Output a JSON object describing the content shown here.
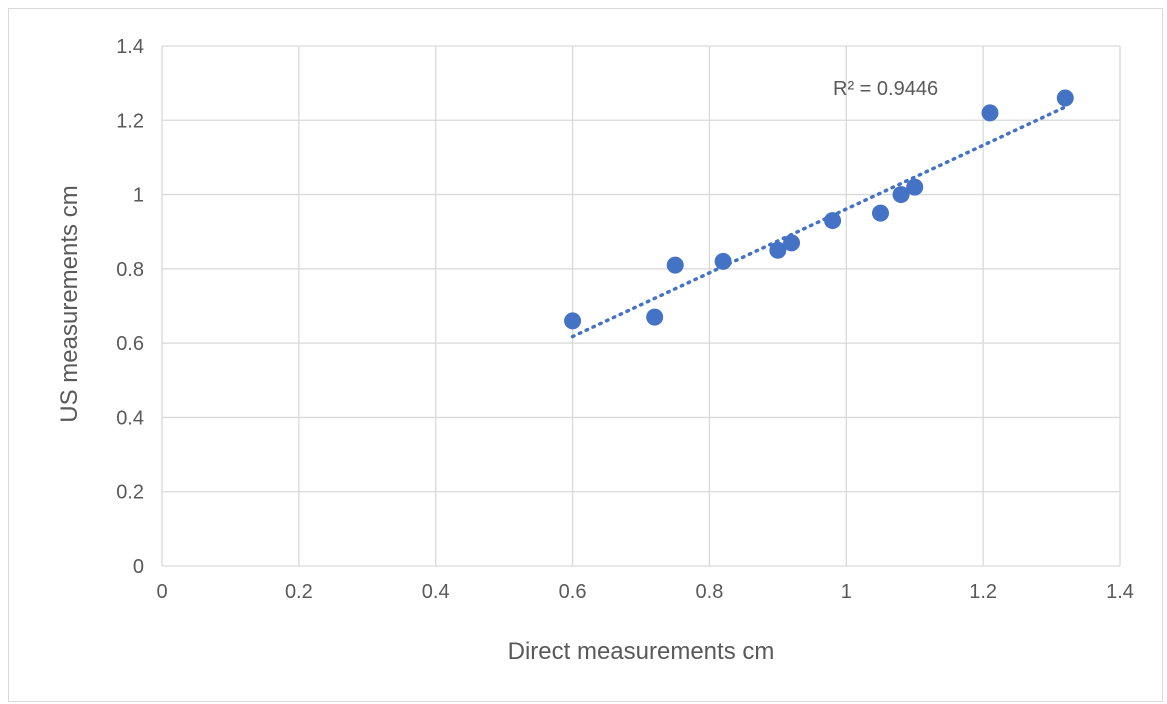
{
  "chart_data": {
    "type": "scatter",
    "title": "",
    "xlabel": "Direct measurements cm",
    "ylabel": "US measurements cm",
    "xlim": [
      0,
      1.4
    ],
    "ylim": [
      0,
      1.4
    ],
    "x_ticks": [
      "0",
      "0.2",
      "0.4",
      "0.6",
      "0.8",
      "1",
      "1.2",
      "1.4"
    ],
    "y_ticks": [
      "0",
      "0.2",
      "0.4",
      "0.6",
      "0.8",
      "1",
      "1.2",
      "1.4"
    ],
    "grid": true,
    "legend": "none",
    "marker_color": "#4472c4",
    "series": [
      {
        "points": [
          {
            "x": 0.6,
            "y": 0.66
          },
          {
            "x": 0.72,
            "y": 0.67
          },
          {
            "x": 0.75,
            "y": 0.81
          },
          {
            "x": 0.82,
            "y": 0.82
          },
          {
            "x": 0.9,
            "y": 0.85
          },
          {
            "x": 0.92,
            "y": 0.87
          },
          {
            "x": 0.98,
            "y": 0.93
          },
          {
            "x": 1.05,
            "y": 0.95
          },
          {
            "x": 1.08,
            "y": 1.0
          },
          {
            "x": 1.1,
            "y": 1.02
          },
          {
            "x": 1.21,
            "y": 1.22
          },
          {
            "x": 1.32,
            "y": 1.26
          }
        ]
      }
    ],
    "trendline": {
      "type": "linear",
      "style": "dotted",
      "r_squared_label": "R² = 0.9446"
    }
  }
}
